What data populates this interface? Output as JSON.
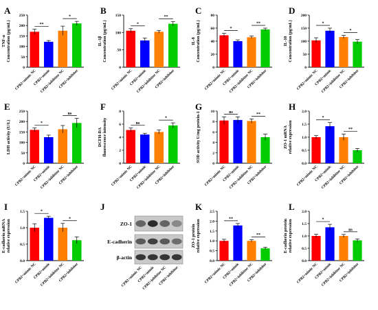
{
  "figure": {
    "categories": [
      "CPB2+mimic NC",
      "CPB2+mimic",
      "CPB2+inhibitor NC",
      "CPB2+inhibitor"
    ],
    "colors": [
      "#ff0000",
      "#0000ff",
      "#ff8000",
      "#00cc00"
    ]
  },
  "chart_data": [
    {
      "type": "bar",
      "letter": "A",
      "ylabel": "TNF-α\nConcentration (pg/mL)",
      "ylim": [
        0,
        250
      ],
      "yticks": [
        0,
        50,
        100,
        150,
        200,
        250
      ],
      "values": [
        170,
        122,
        175,
        210
      ],
      "errors": [
        12,
        6,
        22,
        10
      ],
      "sig": [
        {
          "a": 0,
          "b": 1,
          "label": "**"
        },
        {
          "a": 2,
          "b": 3,
          "label": "*"
        }
      ]
    },
    {
      "type": "bar",
      "letter": "B",
      "ylabel": "IL-1β\nConcentration (pg/mL)",
      "ylim": [
        0,
        150
      ],
      "yticks": [
        0,
        50,
        100,
        150
      ],
      "values": [
        105,
        77,
        102,
        125
      ],
      "errors": [
        6,
        7,
        4,
        6
      ],
      "sig": [
        {
          "a": 0,
          "b": 1,
          "label": "*"
        },
        {
          "a": 2,
          "b": 3,
          "label": "**"
        }
      ]
    },
    {
      "type": "bar",
      "letter": "C",
      "ylabel": "IL-8\nConcentration (pg/mL)",
      "ylim": [
        0,
        80
      ],
      "yticks": [
        0,
        20,
        40,
        60,
        80
      ],
      "values": [
        49,
        40,
        46,
        58
      ],
      "errors": [
        3,
        2,
        2,
        2
      ],
      "sig": [
        {
          "a": 0,
          "b": 1,
          "label": "*"
        },
        {
          "a": 2,
          "b": 3,
          "label": "**"
        }
      ]
    },
    {
      "type": "bar",
      "letter": "D",
      "ylabel": "IL-10\nConcentration (pg/mL)",
      "ylim": [
        0,
        200
      ],
      "yticks": [
        0,
        50,
        100,
        150,
        200
      ],
      "values": [
        103,
        140,
        116,
        98
      ],
      "errors": [
        10,
        10,
        6,
        8
      ],
      "sig": [
        {
          "a": 0,
          "b": 1,
          "label": "*"
        },
        {
          "a": 2,
          "b": 3,
          "label": "*"
        }
      ]
    },
    {
      "type": "bar",
      "letter": "E",
      "ylabel": "LDH activity (U/L)",
      "ylim": [
        0,
        250
      ],
      "yticks": [
        0,
        50,
        100,
        150,
        200,
        250
      ],
      "values": [
        160,
        125,
        163,
        193
      ],
      "errors": [
        10,
        10,
        18,
        22
      ],
      "sig": [
        {
          "a": 0,
          "b": 1,
          "label": "*"
        },
        {
          "a": 2,
          "b": 3,
          "label": "ns"
        }
      ]
    },
    {
      "type": "bar",
      "letter": "F",
      "ylabel": "DCFH-DA\nfluorescence intensity",
      "ylim": [
        0,
        8
      ],
      "yticks": [
        0,
        2,
        4,
        6,
        8
      ],
      "values": [
        5.1,
        4.4,
        4.8,
        5.8
      ],
      "errors": [
        0.3,
        0.2,
        0.3,
        0.4
      ],
      "sig": [
        {
          "a": 0,
          "b": 1,
          "label": "ns"
        },
        {
          "a": 2,
          "b": 3,
          "label": "*"
        }
      ]
    },
    {
      "type": "bar",
      "letter": "G",
      "ylabel": "SOD activity U/mg protein-1",
      "ylim": [
        0,
        10
      ],
      "yticks": [
        0,
        2,
        4,
        6,
        8,
        10
      ],
      "values": [
        8.2,
        8.3,
        8.1,
        5.0
      ],
      "errors": [
        0.7,
        0.6,
        0.4,
        0.6
      ],
      "sig": [
        {
          "a": 0,
          "b": 1,
          "label": "ns"
        },
        {
          "a": 2,
          "b": 3,
          "label": "**"
        }
      ]
    },
    {
      "type": "bar",
      "letter": "H",
      "ylabel": "ZO-1 mRNA\nrelative expression",
      "ylim": [
        0,
        2.0
      ],
      "yticks": [
        0.0,
        0.5,
        1.0,
        1.5,
        2.0
      ],
      "values": [
        1.0,
        1.42,
        1.0,
        0.5
      ],
      "errors": [
        0.06,
        0.14,
        0.12,
        0.07
      ],
      "sig": [
        {
          "a": 0,
          "b": 1,
          "label": "*"
        },
        {
          "a": 2,
          "b": 3,
          "label": "**"
        }
      ]
    },
    {
      "type": "bar",
      "letter": "I",
      "ylabel": "E-cadherin mRNA\nrelative expression",
      "ylim": [
        0,
        1.5
      ],
      "yticks": [
        0.0,
        0.5,
        1.0,
        1.5
      ],
      "values": [
        1.0,
        1.3,
        1.0,
        0.62
      ],
      "errors": [
        0.12,
        0.05,
        0.13,
        0.1
      ],
      "sig": [
        {
          "a": 0,
          "b": 1,
          "label": "*"
        },
        {
          "a": 2,
          "b": 3,
          "label": "*"
        }
      ]
    },
    {
      "type": "bar",
      "letter": "K",
      "ylabel": "ZO-1 protein\nrelative expression",
      "ylim": [
        0,
        2.5
      ],
      "yticks": [
        0.0,
        0.5,
        1.0,
        1.5,
        2.0,
        2.5
      ],
      "values": [
        1.0,
        1.78,
        1.0,
        0.62
      ],
      "errors": [
        0.08,
        0.1,
        0.06,
        0.06
      ],
      "sig": [
        {
          "a": 0,
          "b": 1,
          "label": "**"
        },
        {
          "a": 2,
          "b": 3,
          "label": "**"
        }
      ]
    },
    {
      "type": "bar",
      "letter": "L",
      "ylabel": "E-cadherin protein\nrelative expression",
      "ylim": [
        0,
        2.0
      ],
      "yticks": [
        0.0,
        0.5,
        1.0,
        1.5,
        2.0
      ],
      "values": [
        1.0,
        1.35,
        1.0,
        0.82
      ],
      "errors": [
        0.07,
        0.12,
        0.06,
        0.06
      ],
      "sig": [
        {
          "a": 0,
          "b": 1,
          "label": "*"
        },
        {
          "a": 2,
          "b": 3,
          "label": "ns"
        }
      ]
    }
  ],
  "blot": {
    "letter": "J",
    "labels": [
      "ZO-1",
      "E-cadherin",
      "β-actin"
    ],
    "categories": [
      "CPB2+mimic NC",
      "CPB2+mimic",
      "CPB2+inhibitor NC",
      "CPB2+inhibitor"
    ]
  }
}
